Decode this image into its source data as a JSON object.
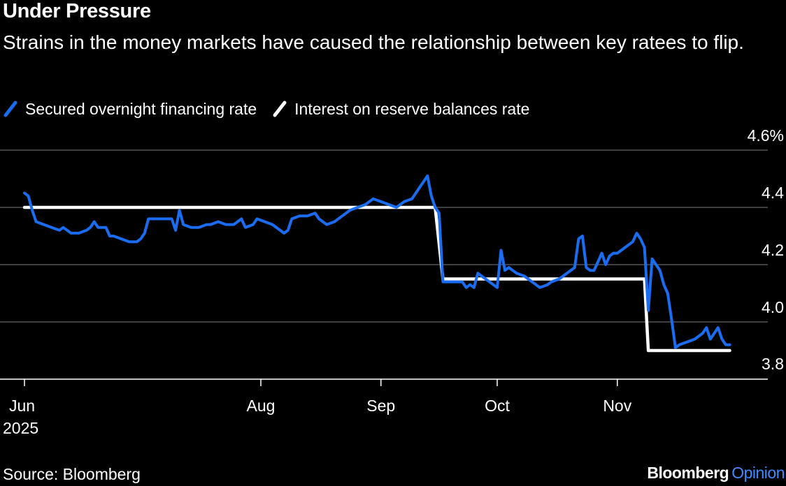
{
  "header": {
    "title": "Under Pressure",
    "subtitle": "Strains in the money markets have caused the relationship between key ratees to flip."
  },
  "footer": {
    "source": "Source: Bloomberg",
    "brand_name": "Bloomberg",
    "brand_suffix": "Opinion"
  },
  "colors": {
    "background": "#000000",
    "sofr": "#1a6cf0",
    "iorb": "#ffffff",
    "grid": "#555555",
    "brand_accent": "#3d8bff"
  },
  "chart_data": {
    "type": "line",
    "title": "Under Pressure",
    "subtitle": "Strains in the money markets have caused the relationship between key ratees to flip.",
    "xlabel": "",
    "ylabel": "",
    "x_ticks": [
      {
        "date": "2025-06-01",
        "label": "Jun",
        "sublabel": "2025"
      },
      {
        "date": "2025-08-01",
        "label": "Aug",
        "sublabel": ""
      },
      {
        "date": "2025-09-01",
        "label": "Sep",
        "sublabel": ""
      },
      {
        "date": "2025-10-01",
        "label": "Oct",
        "sublabel": ""
      },
      {
        "date": "2025-11-01",
        "label": "Nov",
        "sublabel": ""
      }
    ],
    "y_ticks": [
      {
        "value": 3.8,
        "label": "3.8"
      },
      {
        "value": 4.0,
        "label": "4.0"
      },
      {
        "value": 4.2,
        "label": "4.2"
      },
      {
        "value": 4.4,
        "label": "4.4"
      },
      {
        "value": 4.6,
        "label": "4.6%"
      }
    ],
    "ylim": [
      3.8,
      4.6
    ],
    "xlim": [
      "2025-06-01",
      "2025-11-30"
    ],
    "y_axis_position": "right",
    "grid": true,
    "legend_position": "top-left",
    "series": [
      {
        "name": "Secured overnight financing rate",
        "color": "#1a6cf0",
        "points": [
          [
            "2025-06-01",
            4.45
          ],
          [
            "2025-06-02",
            4.44
          ],
          [
            "2025-06-03",
            4.39
          ],
          [
            "2025-06-04",
            4.35
          ],
          [
            "2025-06-06",
            4.34
          ],
          [
            "2025-06-08",
            4.33
          ],
          [
            "2025-06-10",
            4.32
          ],
          [
            "2025-06-11",
            4.33
          ],
          [
            "2025-06-12",
            4.32
          ],
          [
            "2025-06-13",
            4.31
          ],
          [
            "2025-06-15",
            4.31
          ],
          [
            "2025-06-17",
            4.32
          ],
          [
            "2025-06-18",
            4.33
          ],
          [
            "2025-06-19",
            4.35
          ],
          [
            "2025-06-20",
            4.33
          ],
          [
            "2025-06-22",
            4.33
          ],
          [
            "2025-06-23",
            4.3
          ],
          [
            "2025-06-24",
            4.3
          ],
          [
            "2025-06-26",
            4.29
          ],
          [
            "2025-06-28",
            4.28
          ],
          [
            "2025-06-30",
            4.28
          ],
          [
            "2025-07-01",
            4.29
          ],
          [
            "2025-07-02",
            4.31
          ],
          [
            "2025-07-03",
            4.36
          ],
          [
            "2025-07-05",
            4.36
          ],
          [
            "2025-07-07",
            4.36
          ],
          [
            "2025-07-09",
            4.36
          ],
          [
            "2025-07-10",
            4.32
          ],
          [
            "2025-07-11",
            4.39
          ],
          [
            "2025-07-12",
            4.34
          ],
          [
            "2025-07-14",
            4.33
          ],
          [
            "2025-07-16",
            4.33
          ],
          [
            "2025-07-18",
            4.34
          ],
          [
            "2025-07-19",
            4.34
          ],
          [
            "2025-07-21",
            4.35
          ],
          [
            "2025-07-23",
            4.34
          ],
          [
            "2025-07-25",
            4.34
          ],
          [
            "2025-07-27",
            4.36
          ],
          [
            "2025-07-28",
            4.33
          ],
          [
            "2025-07-30",
            4.34
          ],
          [
            "2025-07-31",
            4.36
          ],
          [
            "2025-08-02",
            4.35
          ],
          [
            "2025-08-04",
            4.34
          ],
          [
            "2025-08-05",
            4.33
          ],
          [
            "2025-08-07",
            4.31
          ],
          [
            "2025-08-08",
            4.32
          ],
          [
            "2025-08-09",
            4.36
          ],
          [
            "2025-08-11",
            4.37
          ],
          [
            "2025-08-13",
            4.37
          ],
          [
            "2025-08-15",
            4.38
          ],
          [
            "2025-08-16",
            4.36
          ],
          [
            "2025-08-18",
            4.34
          ],
          [
            "2025-08-20",
            4.35
          ],
          [
            "2025-08-22",
            4.37
          ],
          [
            "2025-08-24",
            4.39
          ],
          [
            "2025-08-26",
            4.4
          ],
          [
            "2025-08-28",
            4.41
          ],
          [
            "2025-08-30",
            4.43
          ],
          [
            "2025-09-01",
            4.42
          ],
          [
            "2025-09-03",
            4.41
          ],
          [
            "2025-09-05",
            4.4
          ],
          [
            "2025-09-07",
            4.42
          ],
          [
            "2025-09-09",
            4.43
          ],
          [
            "2025-09-11",
            4.47
          ],
          [
            "2025-09-13",
            4.51
          ],
          [
            "2025-09-14",
            4.44
          ],
          [
            "2025-09-15",
            4.4
          ],
          [
            "2025-09-16",
            4.38
          ],
          [
            "2025-09-17",
            4.14
          ],
          [
            "2025-09-18",
            4.14
          ],
          [
            "2025-09-20",
            4.14
          ],
          [
            "2025-09-22",
            4.14
          ],
          [
            "2025-09-23",
            4.12
          ],
          [
            "2025-09-24",
            4.13
          ],
          [
            "2025-09-25",
            4.12
          ],
          [
            "2025-09-26",
            4.17
          ],
          [
            "2025-09-28",
            4.15
          ],
          [
            "2025-09-30",
            4.13
          ],
          [
            "2025-10-01",
            4.12
          ],
          [
            "2025-10-02",
            4.25
          ],
          [
            "2025-10-03",
            4.18
          ],
          [
            "2025-10-04",
            4.19
          ],
          [
            "2025-10-06",
            4.17
          ],
          [
            "2025-10-08",
            4.16
          ],
          [
            "2025-10-10",
            4.14
          ],
          [
            "2025-10-12",
            4.12
          ],
          [
            "2025-10-14",
            4.13
          ],
          [
            "2025-10-15",
            4.14
          ],
          [
            "2025-10-17",
            4.15
          ],
          [
            "2025-10-19",
            4.17
          ],
          [
            "2025-10-21",
            4.19
          ],
          [
            "2025-10-22",
            4.29
          ],
          [
            "2025-10-23",
            4.3
          ],
          [
            "2025-10-24",
            4.19
          ],
          [
            "2025-10-25",
            4.18
          ],
          [
            "2025-10-26",
            4.18
          ],
          [
            "2025-10-27",
            4.21
          ],
          [
            "2025-10-28",
            4.24
          ],
          [
            "2025-10-29",
            4.2
          ],
          [
            "2025-10-30",
            4.23
          ],
          [
            "2025-10-31",
            4.24
          ],
          [
            "2025-11-01",
            4.24
          ],
          [
            "2025-11-03",
            4.26
          ],
          [
            "2025-11-05",
            4.28
          ],
          [
            "2025-11-06",
            4.31
          ],
          [
            "2025-11-07",
            4.29
          ],
          [
            "2025-11-08",
            4.26
          ],
          [
            "2025-11-09",
            4.04
          ],
          [
            "2025-11-10",
            4.22
          ],
          [
            "2025-11-12",
            4.18
          ],
          [
            "2025-11-13",
            4.13
          ],
          [
            "2025-11-14",
            4.1
          ],
          [
            "2025-11-15",
            4.01
          ],
          [
            "2025-11-16",
            3.91
          ],
          [
            "2025-11-17",
            3.92
          ],
          [
            "2025-11-19",
            3.93
          ],
          [
            "2025-11-21",
            3.94
          ],
          [
            "2025-11-23",
            3.96
          ],
          [
            "2025-11-24",
            3.98
          ],
          [
            "2025-11-25",
            3.94
          ],
          [
            "2025-11-27",
            3.98
          ],
          [
            "2025-11-28",
            3.94
          ],
          [
            "2025-11-29",
            3.92
          ],
          [
            "2025-11-30",
            3.92
          ]
        ]
      },
      {
        "name": "Interest on reserve balances rate",
        "color": "#ffffff",
        "points": [
          [
            "2025-06-01",
            4.4
          ],
          [
            "2025-09-15",
            4.4
          ],
          [
            "2025-09-17",
            4.15
          ],
          [
            "2025-11-08",
            4.15
          ],
          [
            "2025-11-09",
            3.9
          ],
          [
            "2025-11-30",
            3.9
          ]
        ]
      }
    ]
  }
}
